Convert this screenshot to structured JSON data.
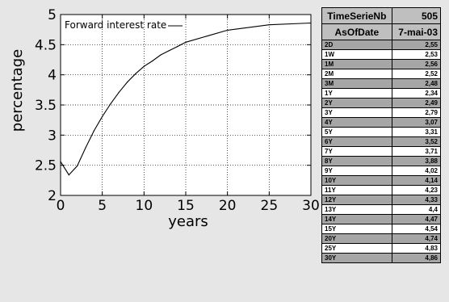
{
  "chart_data": {
    "type": "line",
    "xlabel": "years",
    "ylabel": "percentage",
    "xlim": [
      0,
      30
    ],
    "ylim": [
      2,
      5
    ],
    "xticks": [
      0,
      5,
      10,
      15,
      20,
      25,
      30
    ],
    "yticks": [
      2,
      2.5,
      3,
      3.5,
      4,
      4.5,
      5
    ],
    "grid": true,
    "legend_position": "top-left",
    "series": [
      {
        "name": "Forward interest rate",
        "x": [
          0,
          1,
          2,
          3,
          4,
          5,
          6,
          7,
          8,
          9,
          10,
          11,
          12,
          13,
          14,
          15,
          20,
          25,
          30
        ],
        "values": [
          2.56,
          2.34,
          2.49,
          2.79,
          3.07,
          3.31,
          3.52,
          3.71,
          3.88,
          4.02,
          4.14,
          4.23,
          4.33,
          4.4,
          4.47,
          4.54,
          4.74,
          4.83,
          4.86
        ]
      }
    ]
  },
  "table": {
    "header_rows": [
      {
        "label": "TimeSerieNb",
        "value": "505"
      },
      {
        "label": "AsOfDate",
        "value": "7-mai-03"
      }
    ],
    "rows": [
      {
        "term": "2D",
        "value": "2,55"
      },
      {
        "term": "1W",
        "value": "2,53"
      },
      {
        "term": "1M",
        "value": "2,56"
      },
      {
        "term": "2M",
        "value": "2,52"
      },
      {
        "term": "3M",
        "value": "2,48"
      },
      {
        "term": "1Y",
        "value": "2,34"
      },
      {
        "term": "2Y",
        "value": "2,49"
      },
      {
        "term": "3Y",
        "value": "2,79"
      },
      {
        "term": "4Y",
        "value": "3,07"
      },
      {
        "term": "5Y",
        "value": "3,31"
      },
      {
        "term": "6Y",
        "value": "3,52"
      },
      {
        "term": "7Y",
        "value": "3,71"
      },
      {
        "term": "8Y",
        "value": "3,88"
      },
      {
        "term": "9Y",
        "value": "4,02"
      },
      {
        "term": "10Y",
        "value": "4,14"
      },
      {
        "term": "11Y",
        "value": "4,23"
      },
      {
        "term": "12Y",
        "value": "4,33"
      },
      {
        "term": "13Y",
        "value": "4,4"
      },
      {
        "term": "14Y",
        "value": "4,47"
      },
      {
        "term": "15Y",
        "value": "4,54"
      },
      {
        "term": "20Y",
        "value": "4,74"
      },
      {
        "term": "25Y",
        "value": "4,83"
      },
      {
        "term": "30Y",
        "value": "4,86"
      }
    ]
  }
}
